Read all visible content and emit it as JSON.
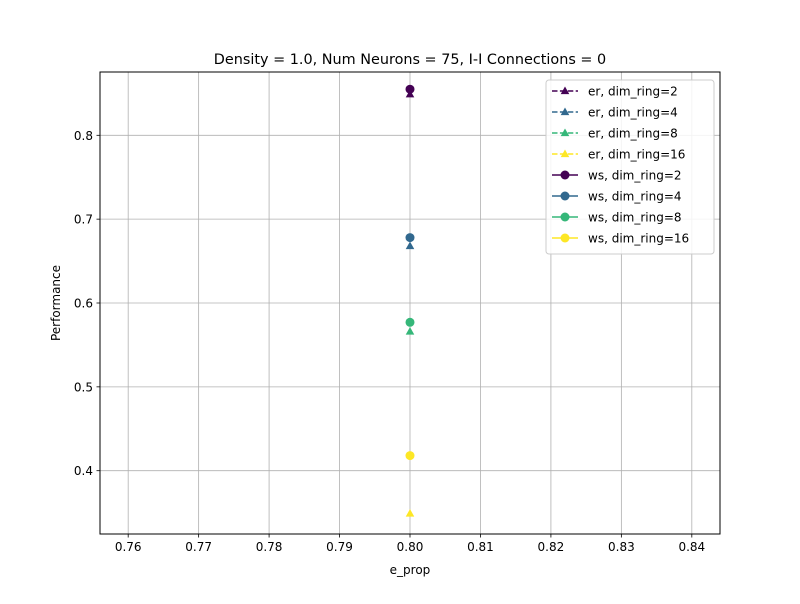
{
  "chart_data": {
    "type": "scatter",
    "title": "Density = 1.0, Num Neurons = 75, I-I Connections = 0",
    "xlabel": "e_prop",
    "ylabel": "Performance",
    "xlim": [
      0.756,
      0.844
    ],
    "ylim": [
      0.3245,
      0.8755
    ],
    "xticks": [
      0.76,
      0.77,
      0.78,
      0.79,
      0.8,
      0.81,
      0.82,
      0.83,
      0.84
    ],
    "xtick_labels": [
      "0.76",
      "0.77",
      "0.78",
      "0.79",
      "0.80",
      "0.81",
      "0.82",
      "0.83",
      "0.84"
    ],
    "yticks": [
      0.4,
      0.5,
      0.6,
      0.7,
      0.8
    ],
    "ytick_labels": [
      "0.4",
      "0.5",
      "0.6",
      "0.7",
      "0.8"
    ],
    "grid": true,
    "legend_position": "top-right",
    "series": [
      {
        "name": "er, dim_ring=2",
        "marker": "triangle",
        "linestyle": "dashed",
        "color": "#440154",
        "x": [
          0.8
        ],
        "y": [
          0.849
        ]
      },
      {
        "name": "er, dim_ring=4",
        "marker": "triangle",
        "linestyle": "dashed",
        "color": "#31688e",
        "x": [
          0.8
        ],
        "y": [
          0.668
        ]
      },
      {
        "name": "er, dim_ring=8",
        "marker": "triangle",
        "linestyle": "dashed",
        "color": "#35b779",
        "x": [
          0.8
        ],
        "y": [
          0.566
        ]
      },
      {
        "name": "er, dim_ring=16",
        "marker": "triangle",
        "linestyle": "dashed",
        "color": "#fde725",
        "x": [
          0.8
        ],
        "y": [
          0.349
        ]
      },
      {
        "name": "ws, dim_ring=2",
        "marker": "circle",
        "linestyle": "solid",
        "color": "#440154",
        "x": [
          0.8
        ],
        "y": [
          0.855
        ]
      },
      {
        "name": "ws, dim_ring=4",
        "marker": "circle",
        "linestyle": "solid",
        "color": "#31688e",
        "x": [
          0.8
        ],
        "y": [
          0.678
        ]
      },
      {
        "name": "ws, dim_ring=8",
        "marker": "circle",
        "linestyle": "solid",
        "color": "#35b779",
        "x": [
          0.8
        ],
        "y": [
          0.577
        ]
      },
      {
        "name": "ws, dim_ring=16",
        "marker": "circle",
        "linestyle": "solid",
        "color": "#fde725",
        "x": [
          0.8
        ],
        "y": [
          0.418
        ]
      }
    ]
  }
}
